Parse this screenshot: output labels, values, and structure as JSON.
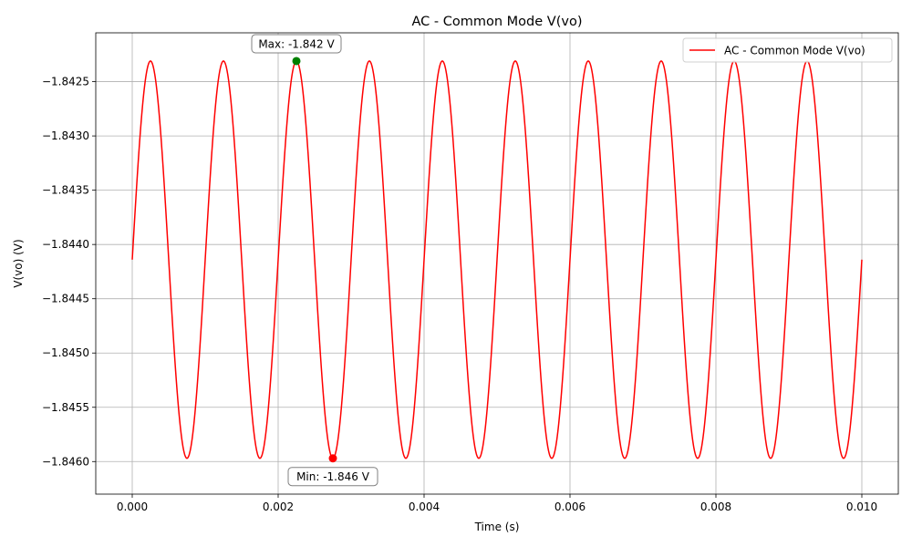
{
  "chart_data": {
    "type": "line",
    "title": "AC - Common Mode V(vo)",
    "xlabel": "Time (s)",
    "ylabel": "V(vo) (V)",
    "xlim": [
      -0.0005,
      0.0105
    ],
    "ylim": [
      -1.8463,
      -1.84205
    ],
    "x_ticks": [
      0.0,
      0.002,
      0.004,
      0.006,
      0.008,
      0.01
    ],
    "x_tick_labels": [
      "0.000",
      "0.002",
      "0.004",
      "0.006",
      "0.008",
      "0.010"
    ],
    "y_ticks": [
      -1.8425,
      -1.843,
      -1.8435,
      -1.844,
      -1.8445,
      -1.845,
      -1.8455,
      -1.846
    ],
    "y_tick_labels": [
      "−1.8425",
      "−1.8430",
      "−1.8435",
      "−1.8440",
      "−1.8445",
      "−1.8450",
      "−1.8455",
      "−1.8460"
    ],
    "grid": true,
    "legend_position": "top-right",
    "series": [
      {
        "name": "AC - Common Mode V(vo)",
        "color": "#ff0000",
        "x_start": 0.0,
        "x_end": 0.01,
        "offset": -1.84414,
        "amplitude": 0.00183,
        "frequency_hz": 1000
      }
    ],
    "annotations": [
      {
        "label": "Max: -1.842 V",
        "x": 0.00225,
        "y": -1.84231,
        "marker_color": "#008000"
      },
      {
        "label": "Min: -1.846 V",
        "x": 0.00275,
        "y": -1.84597,
        "marker_color": "#ff0000"
      }
    ]
  }
}
